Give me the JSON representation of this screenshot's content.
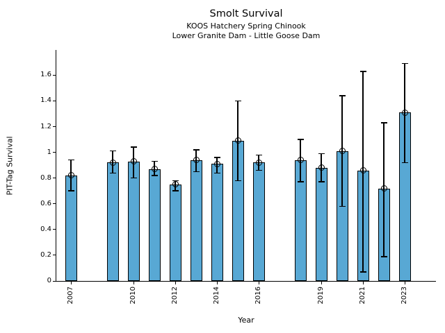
{
  "chart_data": {
    "type": "bar",
    "title": "Smolt Survival",
    "subtitle1": "KOOS Hatchery Spring Chinook",
    "subtitle2": "Lower Granite Dam - Little Goose Dam",
    "xlabel": "Year",
    "ylabel": "PIT-Tag Survival",
    "x": [
      2007,
      2009,
      2010,
      2011,
      2012,
      2013,
      2014,
      2015,
      2016,
      2018,
      2019,
      2020,
      2021,
      2022,
      2023
    ],
    "values": [
      0.82,
      0.92,
      0.93,
      0.87,
      0.75,
      0.94,
      0.91,
      1.09,
      0.92,
      0.94,
      0.88,
      1.01,
      0.86,
      0.72,
      1.31
    ],
    "error_low": [
      0.7,
      0.84,
      0.8,
      0.82,
      0.7,
      0.85,
      0.84,
      0.78,
      0.86,
      0.77,
      0.77,
      0.58,
      0.07,
      0.19,
      0.92
    ],
    "error_high": [
      0.94,
      1.01,
      1.04,
      0.93,
      0.78,
      1.02,
      0.96,
      1.4,
      0.98,
      1.1,
      0.99,
      1.44,
      1.63,
      1.23,
      1.69
    ],
    "xticks": [
      2007,
      2010,
      2012,
      2014,
      2016,
      2019,
      2021,
      2023
    ],
    "xtick_labels": [
      "2007",
      "2010",
      "2012",
      "2014",
      "2016",
      "2019",
      "2021",
      "2023"
    ],
    "yticks": [
      0,
      0.2,
      0.4,
      0.6,
      0.8,
      1,
      1.2,
      1.4,
      1.6
    ],
    "ytick_labels": [
      "0",
      "0.2",
      "0.4",
      "0.6",
      "0.8",
      "1",
      "1.2",
      "1.4",
      "1.6"
    ],
    "xlim": [
      2006.3,
      2024.5
    ],
    "ylim": [
      0,
      1.796
    ],
    "bar_color": "#58a8d4",
    "edge_color": "#000000",
    "marker": "open-circle",
    "grid": false,
    "legend": null
  }
}
